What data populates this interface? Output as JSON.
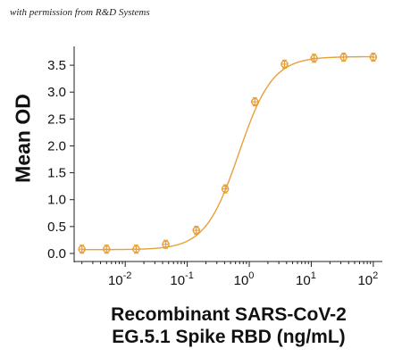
{
  "credit": "with permission from R&D Systems",
  "chart_data": {
    "type": "scatter",
    "title": "",
    "ylabel": "Mean OD",
    "xlabel_lines": [
      "Recombinant SARS-CoV-2",
      "EG.5.1 Spike RBD (ng/mL)"
    ],
    "x_scale": "log",
    "xlim": [
      0.0015,
      140
    ],
    "ylim": [
      -0.15,
      3.85
    ],
    "x_ticks": [
      {
        "value": 0.01,
        "base": "10",
        "exp": "-2"
      },
      {
        "value": 0.1,
        "base": "10",
        "exp": "-1"
      },
      {
        "value": 1,
        "base": "10",
        "exp": "0"
      },
      {
        "value": 10,
        "base": "10",
        "exp": "1"
      },
      {
        "value": 100,
        "base": "10",
        "exp": "2"
      }
    ],
    "y_ticks": [
      "0.0",
      "0.5",
      "1.0",
      "1.5",
      "2.0",
      "2.5",
      "3.0",
      "3.5"
    ],
    "grid": false,
    "color": "#e8a13a",
    "series": [
      {
        "x": [
          0.002,
          0.005,
          0.015,
          0.045,
          0.14,
          0.41,
          1.23,
          3.7,
          11.1,
          33.3,
          100
        ],
        "y": [
          0.08,
          0.08,
          0.08,
          0.17,
          0.43,
          1.2,
          2.82,
          3.52,
          3.63,
          3.65,
          3.65
        ]
      }
    ],
    "fit": {
      "model": "4PL",
      "bottom": 0.07,
      "top": 3.66,
      "ec50": 0.68,
      "hill": 1.6
    }
  }
}
